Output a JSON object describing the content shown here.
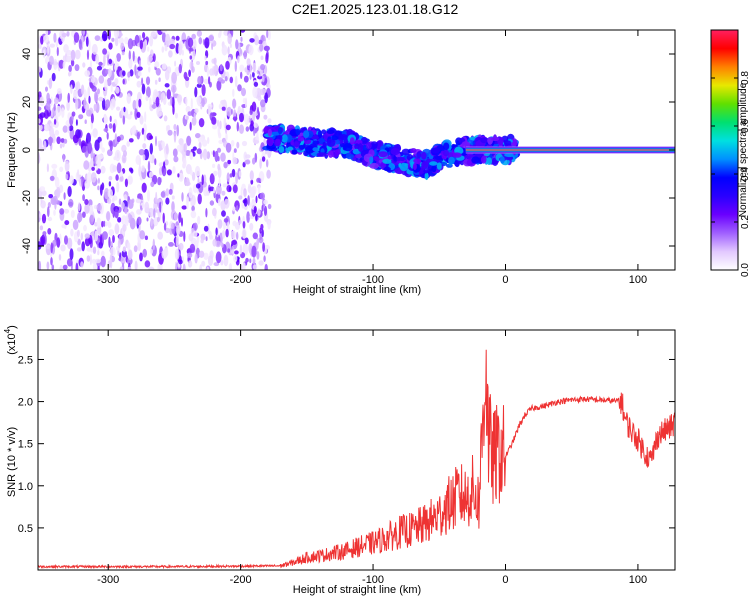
{
  "title": "C2E1.2025.123.01.18.G12",
  "chart_data": [
    {
      "type": "heatmap",
      "xlabel": "Height of straight line (km)",
      "ylabel": "Frequency (Hz)",
      "xlim": [
        -353,
        128
      ],
      "ylim": [
        -50,
        50
      ],
      "xticks": [
        -300,
        -200,
        -100,
        0,
        100
      ],
      "yticks": [
        -40,
        -20,
        0,
        20,
        40
      ],
      "grid": false,
      "colorbar": {
        "label": "Normalized spectral amplitude",
        "range": [
          0,
          1
        ],
        "ticks": [
          0.0,
          0.2,
          0.4,
          0.6,
          0.8
        ],
        "colormap": [
          "#ffffff",
          "#e2c8ff",
          "#a060ff",
          "#6a00ff",
          "#2a00ff",
          "#0000ff",
          "#0090ff",
          "#00e0e0",
          "#00e070",
          "#60e000",
          "#e8e800",
          "#ff8000",
          "#ff0000",
          "#ff2060"
        ]
      },
      "regions": [
        {
          "name": "noise",
          "x_range": [
            -353,
            -178
          ],
          "f_range": [
            -50,
            50
          ],
          "amplitude_range": [
            0.0,
            0.15
          ]
        },
        {
          "name": "signal_track",
          "center_points": [
            [
              -180,
              5
            ],
            [
              -160,
              4
            ],
            [
              -140,
              3
            ],
            [
              -120,
              3
            ],
            [
              -100,
              -2
            ],
            [
              -80,
              -4
            ],
            [
              -60,
              -6
            ],
            [
              -40,
              -1
            ],
            [
              -20,
              0
            ],
            [
              8,
              0
            ]
          ],
          "amplitude_range": [
            0.2,
            0.5
          ]
        },
        {
          "name": "carrier_line",
          "x_range": [
            -30,
            128
          ],
          "frequency": 0,
          "amplitude": 1.0
        }
      ]
    },
    {
      "type": "line",
      "xlabel": "Height of straight line (km)",
      "ylabel": "SNR (10 * v/v)",
      "y_scale_label": "(x10",
      "y_scale_exponent": "4",
      "xlim": [
        -353,
        128
      ],
      "ylim": [
        0,
        28500
      ],
      "xticks": [
        -300,
        -200,
        -100,
        0,
        100
      ],
      "yticks": [
        5000,
        10000,
        15000,
        20000,
        25000
      ],
      "ytick_labels": [
        "0.5",
        "1.0",
        "1.5",
        "2.0",
        "2.5"
      ],
      "grid": false,
      "series": [
        {
          "color": "#ee3333",
          "x": [
            -353,
            -300,
            -250,
            -200,
            -170,
            -160,
            -150,
            -140,
            -130,
            -120,
            -110,
            -100,
            -90,
            -80,
            -70,
            -60,
            -50,
            -45,
            -40,
            -35,
            -30,
            -25,
            -20,
            -17,
            -15,
            -13,
            -10,
            -5,
            0,
            5,
            10,
            15,
            20,
            30,
            40,
            50,
            60,
            70,
            80,
            88,
            90,
            95,
            100,
            105,
            110,
            115,
            120,
            125,
            128
          ],
          "y": [
            400,
            400,
            400,
            450,
            500,
            900,
            1500,
            1700,
            2000,
            2300,
            2800,
            3200,
            3800,
            4500,
            4800,
            5500,
            6500,
            7500,
            8000,
            9000,
            8500,
            9500,
            8000,
            18000,
            26000,
            16000,
            13000,
            14000,
            13500,
            15000,
            17000,
            18500,
            19200,
            19500,
            20000,
            20200,
            20300,
            20200,
            20100,
            20000,
            18000,
            16500,
            15500,
            14000,
            13000,
            16000,
            16500,
            17000,
            17500
          ]
        }
      ]
    }
  ]
}
